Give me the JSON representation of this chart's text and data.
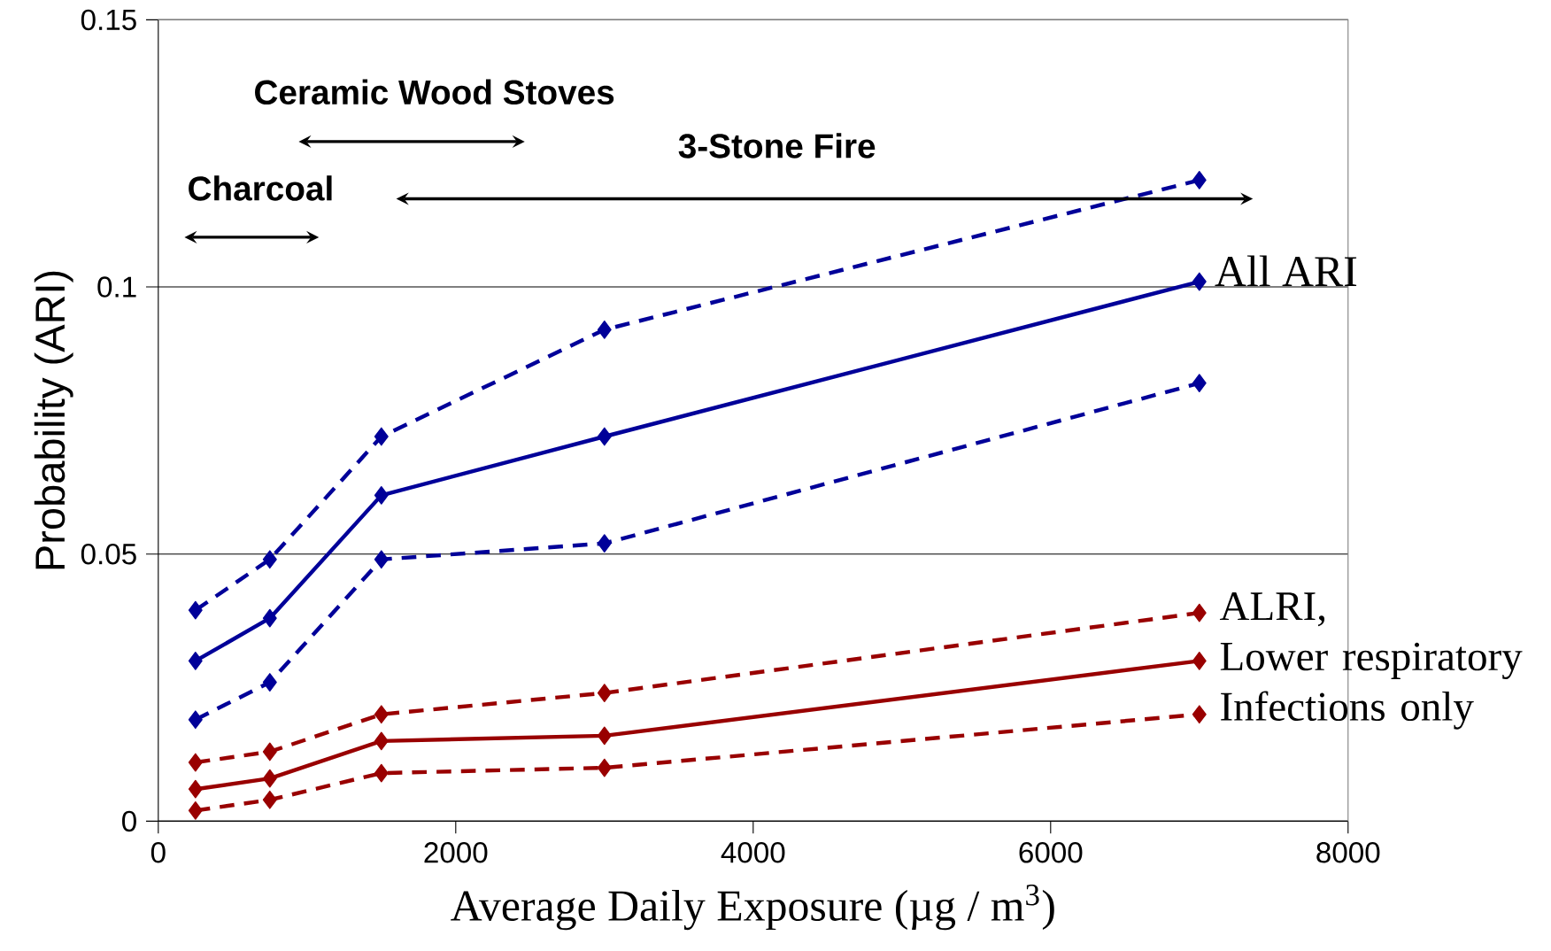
{
  "chart_data": {
    "type": "line",
    "xlabel": "Average Daily Exposure (µg / m$^{3}$)",
    "ylabel": "Probability (ARI)",
    "x": [
      250,
      750,
      1500,
      3000,
      7000
    ],
    "xlim": [
      0,
      8000
    ],
    "xticks": [
      0,
      2000,
      4000,
      6000,
      8000
    ],
    "ylim": [
      0,
      0.15
    ],
    "yticks": [
      0,
      0.05,
      0.1,
      0.15
    ],
    "grid": "y",
    "marker": "diamond",
    "series": [
      {
        "name": "All ARI",
        "color": "#000099",
        "values": [
          0.03,
          0.038,
          0.061,
          0.072,
          0.101
        ],
        "line_style": "solid"
      },
      {
        "color": "#000099",
        "values": [
          0.0395,
          0.049,
          0.072,
          0.092,
          0.12
        ],
        "line_style": "dashed"
      },
      {
        "color": "#000099",
        "values": [
          0.019,
          0.026,
          0.049,
          0.052,
          0.082
        ],
        "line_style": "dashed"
      },
      {
        "name": "ALRI, Lower respiratory Infections only",
        "color": "#990000",
        "values": [
          0.006,
          0.008,
          0.015,
          0.016,
          0.03
        ],
        "line_style": "solid"
      },
      {
        "color": "#990000",
        "values": [
          0.011,
          0.013,
          0.02,
          0.024,
          0.039
        ],
        "line_style": "dashed"
      },
      {
        "color": "#990000",
        "values": [
          0.002,
          0.004,
          0.009,
          0.01,
          0.02
        ],
        "line_style": "dashed"
      }
    ],
    "annotations": [
      "Charcoal",
      "Ceramic Wood Stoves",
      "3-Stone Fire"
    ]
  }
}
